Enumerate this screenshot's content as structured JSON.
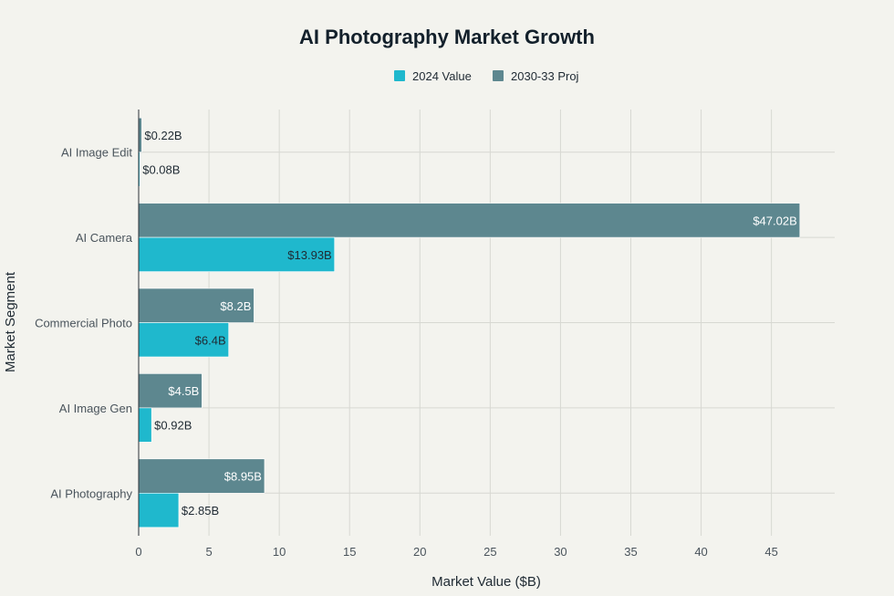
{
  "chart_data": {
    "type": "bar",
    "orientation": "horizontal",
    "title": "AI Photography Market Growth",
    "xlabel": "Market Value ($B)",
    "ylabel": "Market Segment",
    "categories": [
      "AI Photography",
      "AI Image Gen",
      "Commercial Photo",
      "AI Camera",
      "AI Image Edit"
    ],
    "series": [
      {
        "name": "2024 Value",
        "color": "#1fb8cd",
        "values": [
          2.85,
          0.92,
          6.4,
          13.93,
          0.08
        ],
        "labels": [
          "$2.85B",
          "$0.92B",
          "$6.4B",
          "$13.93B",
          "$0.08B"
        ]
      },
      {
        "name": "2030-33 Proj",
        "color": "#5d878f",
        "values": [
          8.95,
          4.5,
          8.2,
          47.02,
          0.22
        ],
        "labels": [
          "$8.95B",
          "$4.5B",
          "$8.2B",
          "$47.02B",
          "$0.22B"
        ]
      }
    ],
    "xlim": [
      0,
      49.5
    ],
    "xticks": [
      0,
      5,
      10,
      15,
      20,
      25,
      30,
      35,
      40,
      45
    ],
    "grid": true,
    "legend_position": "top-center"
  }
}
